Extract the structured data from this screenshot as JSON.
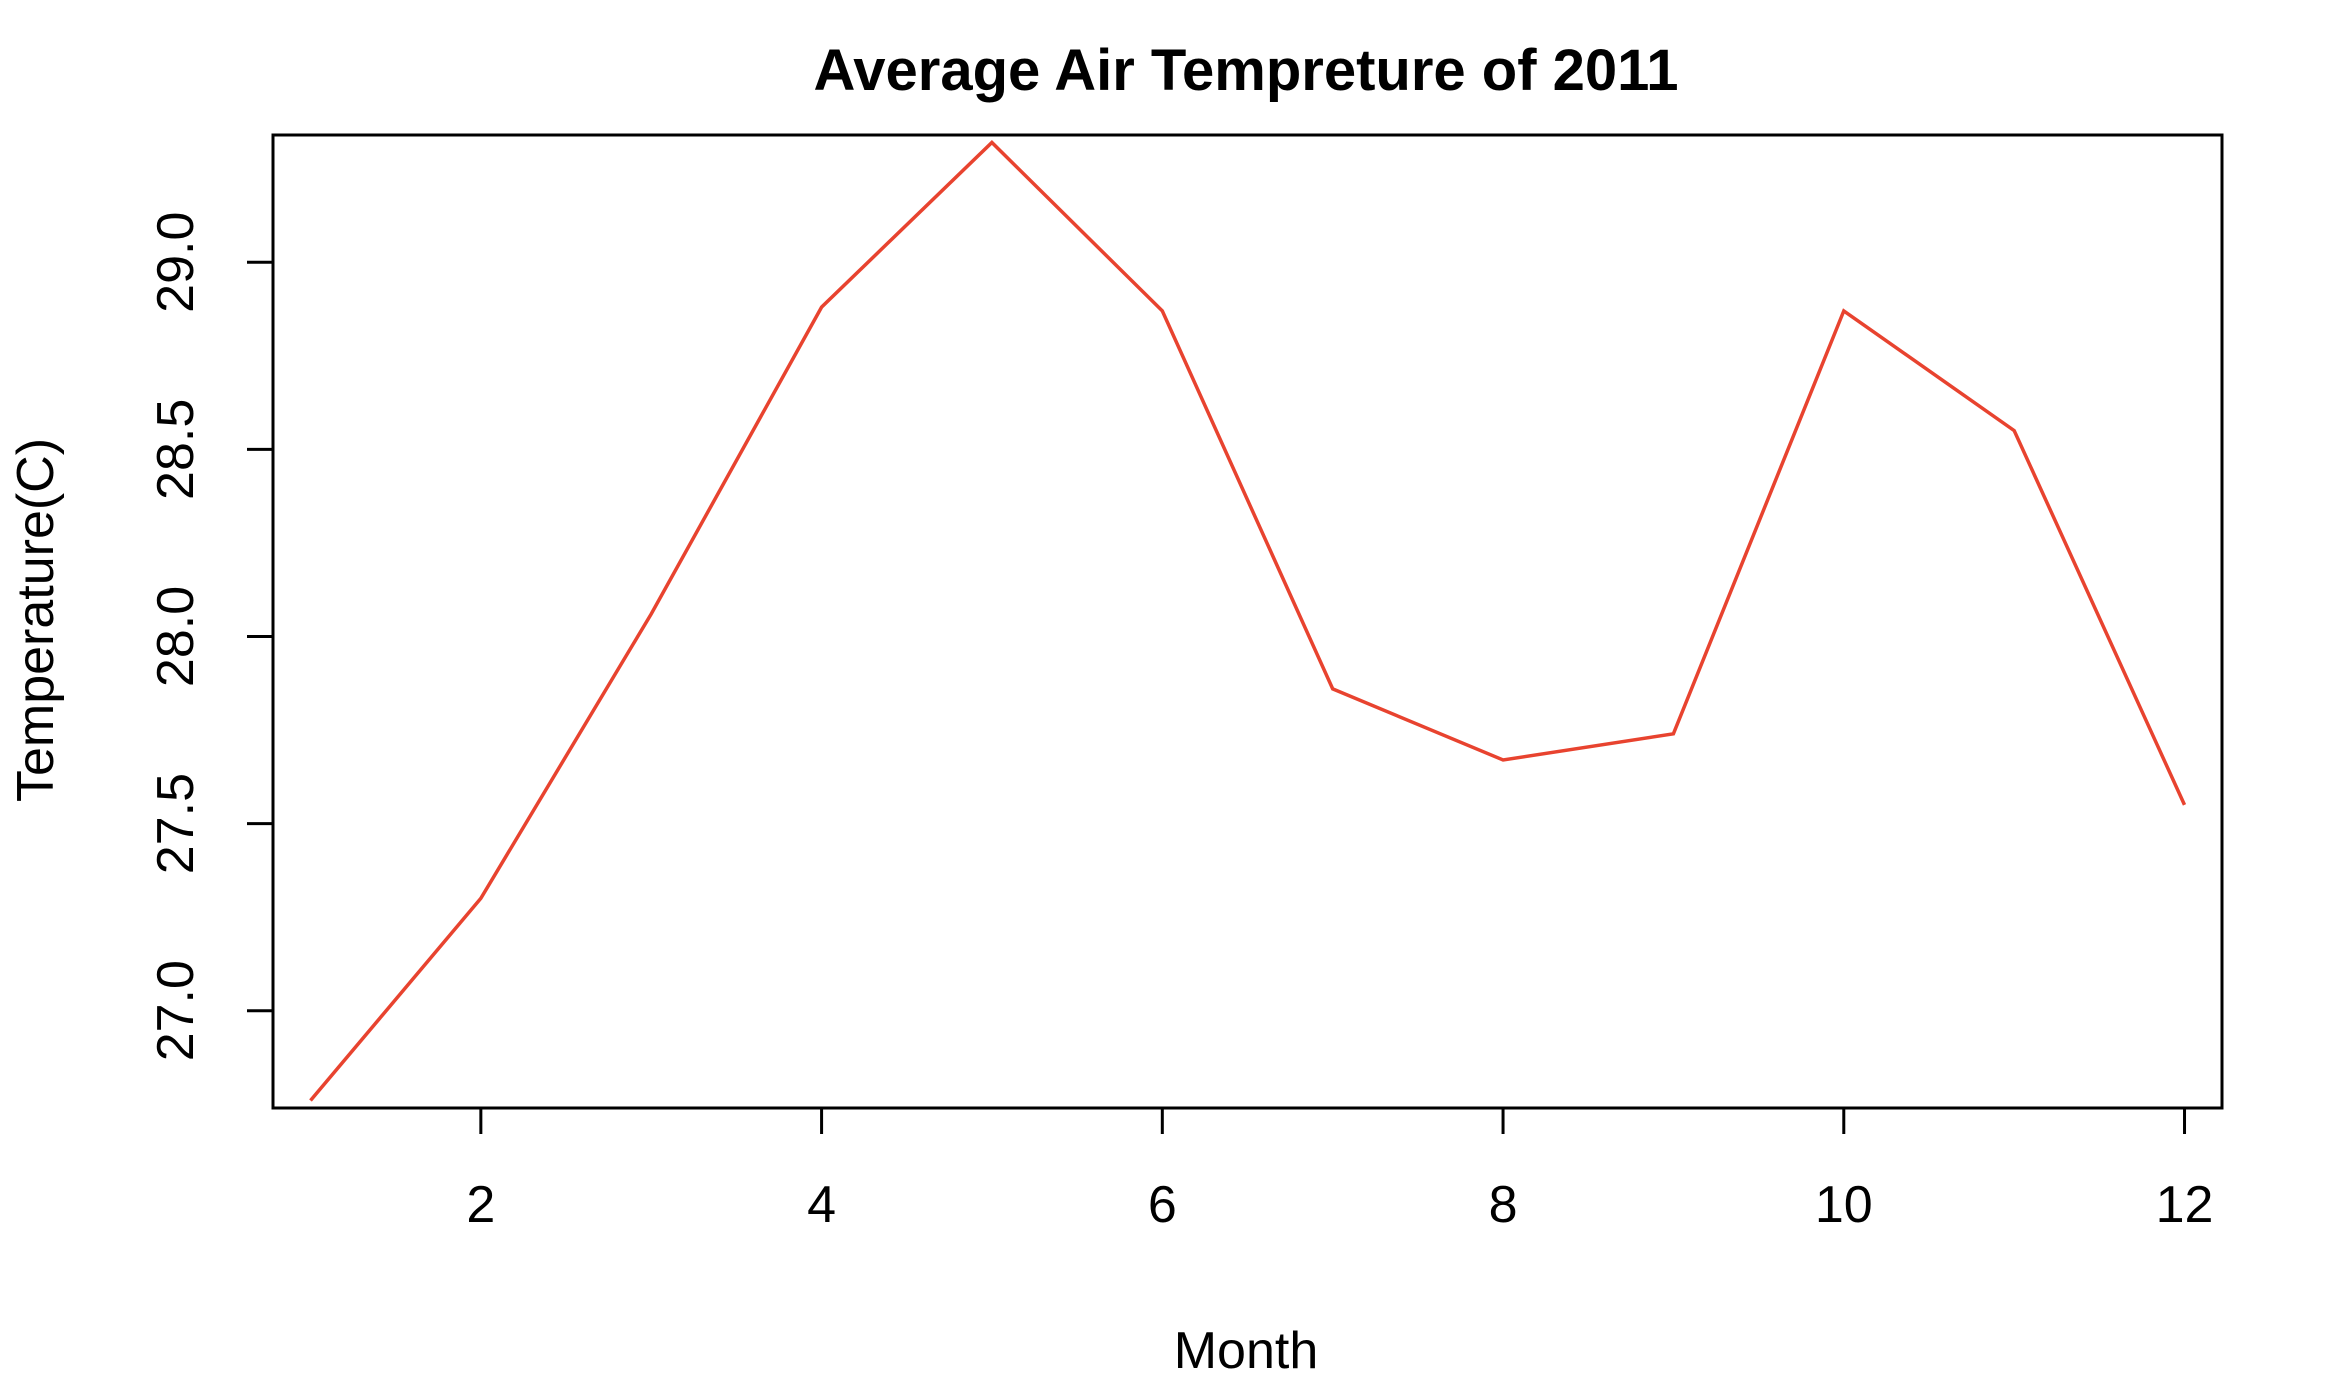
{
  "chart_data": {
    "type": "line",
    "title": "Average Air Tempreture of 2011",
    "xlabel": "Month",
    "ylabel": "Temperature(C)",
    "xlim": [
      0.78,
      12.22
    ],
    "ylim": [
      26.74,
      29.34
    ],
    "x_ticks": [
      2,
      4,
      6,
      8,
      10,
      12
    ],
    "x_tick_labels": [
      "2",
      "4",
      "6",
      "8",
      "10",
      "12"
    ],
    "y_ticks": [
      27.0,
      27.5,
      28.0,
      28.5,
      29.0
    ],
    "y_tick_labels": [
      "27.0",
      "27.5",
      "28.0",
      "28.5",
      "29.0"
    ],
    "grid": false,
    "series": [
      {
        "color": "#e8432f",
        "x": [
          1,
          2,
          3,
          4,
          5,
          6,
          7,
          8,
          9,
          10,
          11,
          12
        ],
        "values": [
          26.76,
          27.3,
          28.06,
          28.88,
          29.32,
          28.87,
          27.86,
          27.67,
          27.74,
          28.87,
          28.55,
          27.55
        ]
      }
    ]
  }
}
